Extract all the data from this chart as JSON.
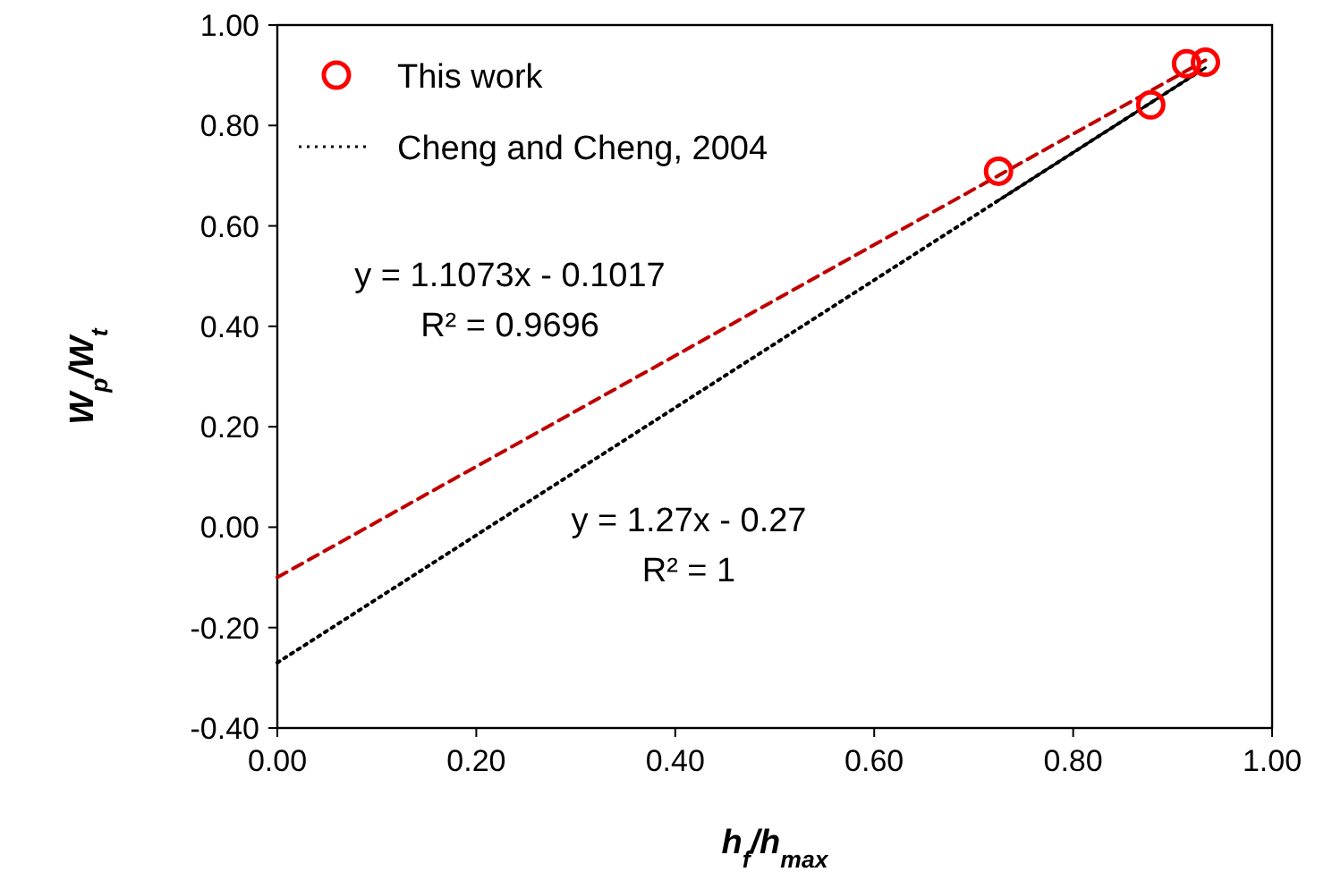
{
  "chart_data": {
    "type": "scatter",
    "xlabel": "h$_{f}$/h$_{max}$",
    "ylabel": "W$_{p}$/W$_{t}$",
    "xlim": [
      0,
      1
    ],
    "ylim": [
      -0.4,
      1
    ],
    "xticks": [
      {
        "value": 0,
        "label": "0.00"
      },
      {
        "value": 0.2,
        "label": "0.20"
      },
      {
        "value": 0.4,
        "label": "0.40"
      },
      {
        "value": 0.6,
        "label": "0.60"
      },
      {
        "value": 0.8,
        "label": "0.80"
      },
      {
        "value": 1,
        "label": "1.00"
      }
    ],
    "yticks": [
      {
        "value": -0.4,
        "label": "-0.40"
      },
      {
        "value": -0.2,
        "label": "-0.20"
      },
      {
        "value": 0,
        "label": "0.00"
      },
      {
        "value": 0.2,
        "label": "0.20"
      },
      {
        "value": 0.4,
        "label": "0.40"
      },
      {
        "value": 0.6,
        "label": "0.60"
      },
      {
        "value": 0.8,
        "label": "0.80"
      },
      {
        "value": 1,
        "label": "1.00"
      }
    ],
    "grid": false,
    "legend": "top left",
    "series": [
      {
        "name": "This work",
        "color": "#ff0000",
        "marker": "circle",
        "x": [
          0.725,
          0.878,
          0.914,
          0.933
        ],
        "values": [
          0.709,
          0.841,
          0.923,
          0.926
        ]
      },
      {
        "name": "Cheng and Cheng, 2004",
        "type": "line",
        "color": "#000000",
        "line_style": "dotted",
        "x": [
          0,
          0.933
        ],
        "values": [
          -0.27,
          0.915
        ]
      },
      {
        "type": "line",
        "color": "#000000",
        "line_style": "solid",
        "x": [
          0.725,
          0.933
        ],
        "values": [
          0.651,
          0.915
        ]
      },
      {
        "type": "line",
        "color": "#c00000",
        "line_style": "dashed",
        "x": [
          0,
          0.933
        ],
        "values": [
          -0.1,
          0.93
        ]
      }
    ],
    "annotations": [
      "y = 1.1073x - 0.1017",
      "R² = 0.9696",
      "y = 1.27x - 0.27",
      "R² = 1"
    ]
  }
}
